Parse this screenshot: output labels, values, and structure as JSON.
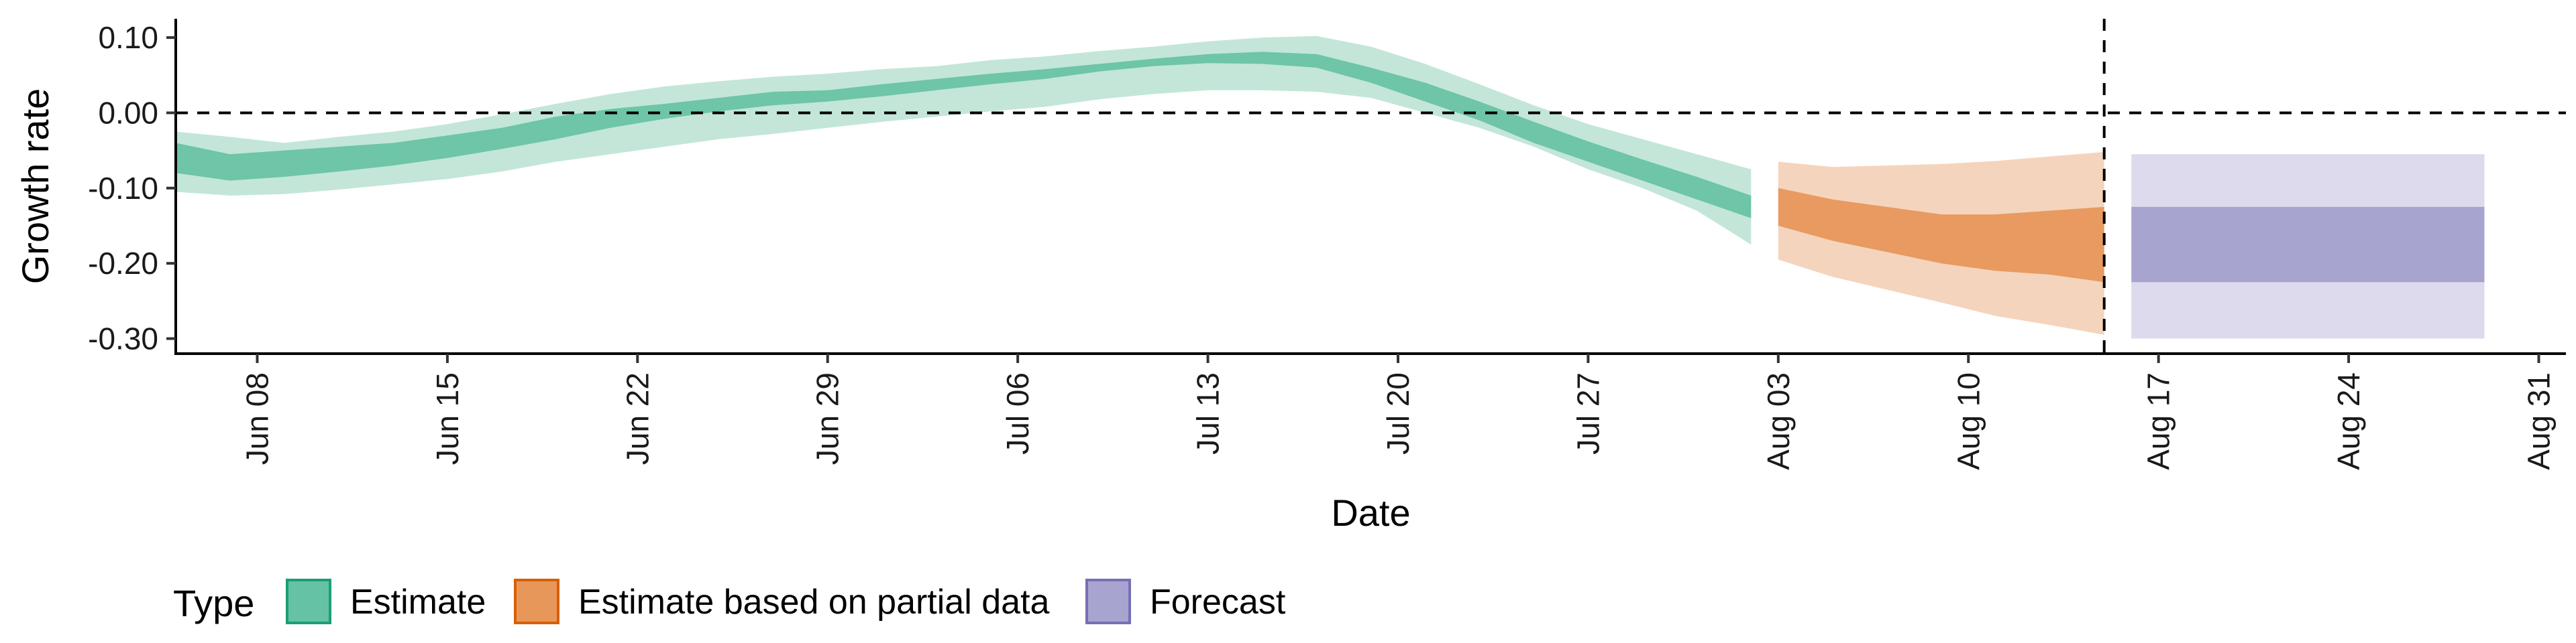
{
  "chart_data": {
    "type": "area",
    "xlabel": "Date",
    "ylabel": "Growth rate",
    "xlim": [
      "2020-06-05",
      "2020-09-01"
    ],
    "ylim": [
      -0.32,
      0.125
    ],
    "x_ticks": [
      "2020-06-08",
      "2020-06-15",
      "2020-06-22",
      "2020-06-29",
      "2020-07-06",
      "2020-07-13",
      "2020-07-20",
      "2020-07-27",
      "2020-08-03",
      "2020-08-10",
      "2020-08-17",
      "2020-08-24",
      "2020-08-31"
    ],
    "x_tick_labels": [
      "Jun 08",
      "Jun 15",
      "Jun 22",
      "Jun 29",
      "Jul 06",
      "Jul 13",
      "Jul 20",
      "Jul 27",
      "Aug 03",
      "Aug 10",
      "Aug 17",
      "Aug 24",
      "Aug 31"
    ],
    "y_ticks": [
      0.1,
      0.0,
      -0.1,
      -0.2,
      -0.3
    ],
    "y_tick_labels": [
      "0.10",
      "0.00",
      "-0.10",
      "-0.20",
      "-0.30"
    ],
    "reference_lines": {
      "horizontal_y": 0.0,
      "vertical_x": "2020-08-15"
    },
    "grid": false,
    "legend": {
      "title": "Type",
      "placement": "bottom-left",
      "items": [
        {
          "label": "Estimate",
          "fill": "#66c2a5",
          "border": "#1b9e77"
        },
        {
          "label": "Estimate based on partial data",
          "fill": "#e8975a",
          "border": "#d95f02"
        },
        {
          "label": "Forecast",
          "fill": "#a8a4d0",
          "border": "#7570b3"
        }
      ]
    },
    "series": [
      {
        "name": "Estimate",
        "color_outer": "#c3e6d9",
        "color_inner": "#6ec5a8",
        "x": [
          "2020-06-05",
          "2020-06-07",
          "2020-06-09",
          "2020-06-11",
          "2020-06-13",
          "2020-06-15",
          "2020-06-17",
          "2020-06-19",
          "2020-06-21",
          "2020-06-23",
          "2020-06-25",
          "2020-06-27",
          "2020-06-29",
          "2020-07-01",
          "2020-07-03",
          "2020-07-05",
          "2020-07-07",
          "2020-07-09",
          "2020-07-11",
          "2020-07-13",
          "2020-07-15",
          "2020-07-17",
          "2020-07-19",
          "2020-07-21",
          "2020-07-23",
          "2020-07-25",
          "2020-07-27",
          "2020-07-29",
          "2020-07-31",
          "2020-08-02"
        ],
        "outer_lower": [
          -0.105,
          -0.11,
          -0.108,
          -0.102,
          -0.095,
          -0.088,
          -0.078,
          -0.065,
          -0.055,
          -0.045,
          -0.035,
          -0.028,
          -0.02,
          -0.012,
          -0.005,
          0.002,
          0.008,
          0.018,
          0.025,
          0.03,
          0.03,
          0.028,
          0.02,
          0.0,
          -0.02,
          -0.045,
          -0.075,
          -0.1,
          -0.13,
          -0.175
        ],
        "inner_lower": [
          -0.08,
          -0.09,
          -0.085,
          -0.078,
          -0.07,
          -0.06,
          -0.048,
          -0.035,
          -0.02,
          -0.008,
          0.002,
          0.01,
          0.015,
          0.022,
          0.03,
          0.038,
          0.045,
          0.055,
          0.062,
          0.066,
          0.065,
          0.06,
          0.04,
          0.015,
          -0.01,
          -0.04,
          -0.065,
          -0.09,
          -0.115,
          -0.14
        ],
        "inner_upper": [
          -0.04,
          -0.055,
          -0.05,
          -0.045,
          -0.04,
          -0.03,
          -0.02,
          -0.005,
          0.005,
          0.012,
          0.02,
          0.028,
          0.03,
          0.038,
          0.045,
          0.052,
          0.058,
          0.065,
          0.072,
          0.078,
          0.081,
          0.078,
          0.06,
          0.04,
          0.015,
          -0.012,
          -0.038,
          -0.062,
          -0.085,
          -0.11
        ],
        "outer_upper": [
          -0.025,
          -0.032,
          -0.04,
          -0.032,
          -0.025,
          -0.015,
          -0.002,
          0.012,
          0.025,
          0.035,
          0.042,
          0.048,
          0.052,
          0.058,
          0.062,
          0.07,
          0.075,
          0.082,
          0.088,
          0.095,
          0.1,
          0.102,
          0.088,
          0.065,
          0.038,
          0.01,
          -0.015,
          -0.035,
          -0.055,
          -0.075
        ]
      },
      {
        "name": "Estimate based on partial data",
        "color_outer": "#f5d4bd",
        "color_inner": "#e89a60",
        "x": [
          "2020-08-03",
          "2020-08-05",
          "2020-08-07",
          "2020-08-09",
          "2020-08-11",
          "2020-08-13",
          "2020-08-15"
        ],
        "outer_lower": [
          -0.195,
          -0.218,
          -0.235,
          -0.252,
          -0.27,
          -0.282,
          -0.295
        ],
        "inner_lower": [
          -0.15,
          -0.17,
          -0.185,
          -0.2,
          -0.21,
          -0.215,
          -0.225
        ],
        "inner_upper": [
          -0.1,
          -0.115,
          -0.125,
          -0.135,
          -0.135,
          -0.13,
          -0.125
        ],
        "outer_upper": [
          -0.065,
          -0.072,
          -0.07,
          -0.068,
          -0.064,
          -0.058,
          -0.052
        ]
      },
      {
        "name": "Forecast",
        "color_outer": "#dcdaec",
        "color_inner": "#a8a4d0",
        "x": [
          "2020-08-16",
          "2020-08-29"
        ],
        "outer_lower": [
          -0.3,
          -0.3
        ],
        "inner_lower": [
          -0.225,
          -0.225
        ],
        "inner_upper": [
          -0.125,
          -0.125
        ],
        "outer_upper": [
          -0.055,
          -0.055
        ]
      }
    ]
  }
}
